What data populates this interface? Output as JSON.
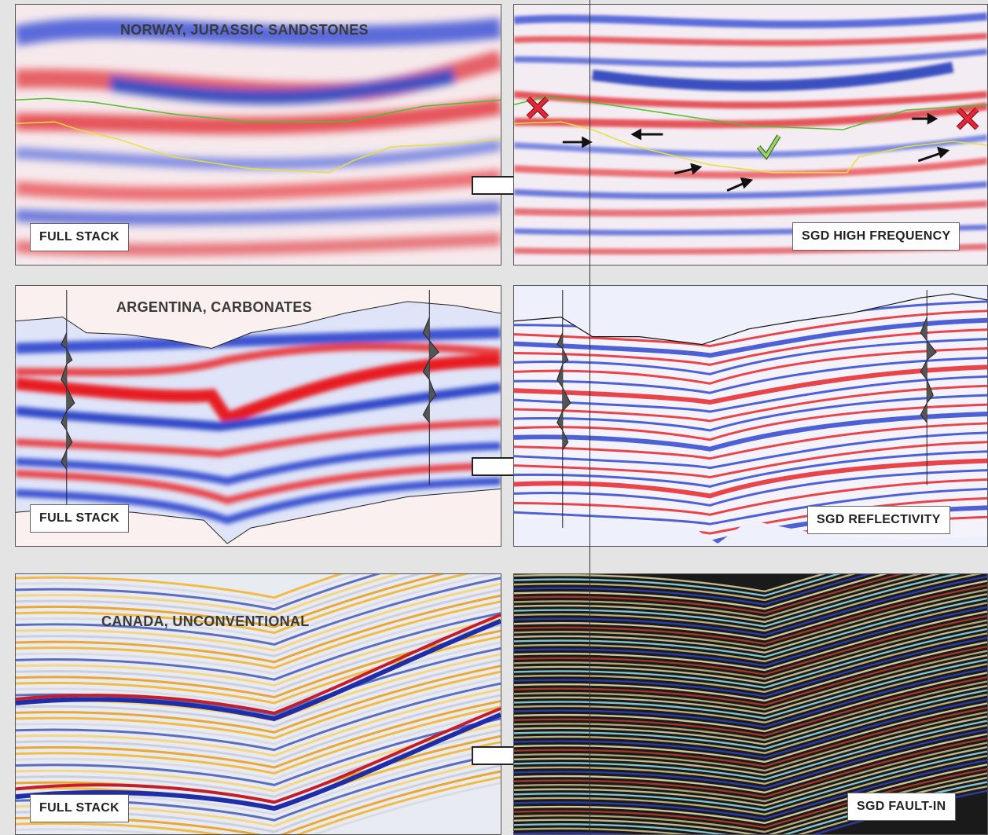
{
  "rows": [
    {
      "region_title": "NORWAY, JURASSIC SANDSTONES",
      "left_label": "FULL STACK",
      "right_label": "SGD HIGH FREQUENCY"
    },
    {
      "region_title": "ARGENTINA, CARBONATES",
      "left_label": "FULL STACK",
      "right_label": "SGD REFLECTIVITY"
    },
    {
      "region_title": "CANADA, UNCONVENTIONAL",
      "left_label": "FULL STACK",
      "right_label": "SGD FAULT-IN"
    }
  ],
  "colors": {
    "background": "#e4e4e4",
    "seismic_red": "#e8353a",
    "seismic_blue": "#2b43c9",
    "horizon_green": "#4fbf2a",
    "horizon_yellow": "#e6e03a",
    "reject_mark": "#d8283a",
    "accept_mark": "#9fd36a"
  },
  "icons": [
    "right-arrow-icon",
    "x-mark-icon",
    "check-mark-icon",
    "small-arrow-icon",
    "well-log-icon"
  ]
}
